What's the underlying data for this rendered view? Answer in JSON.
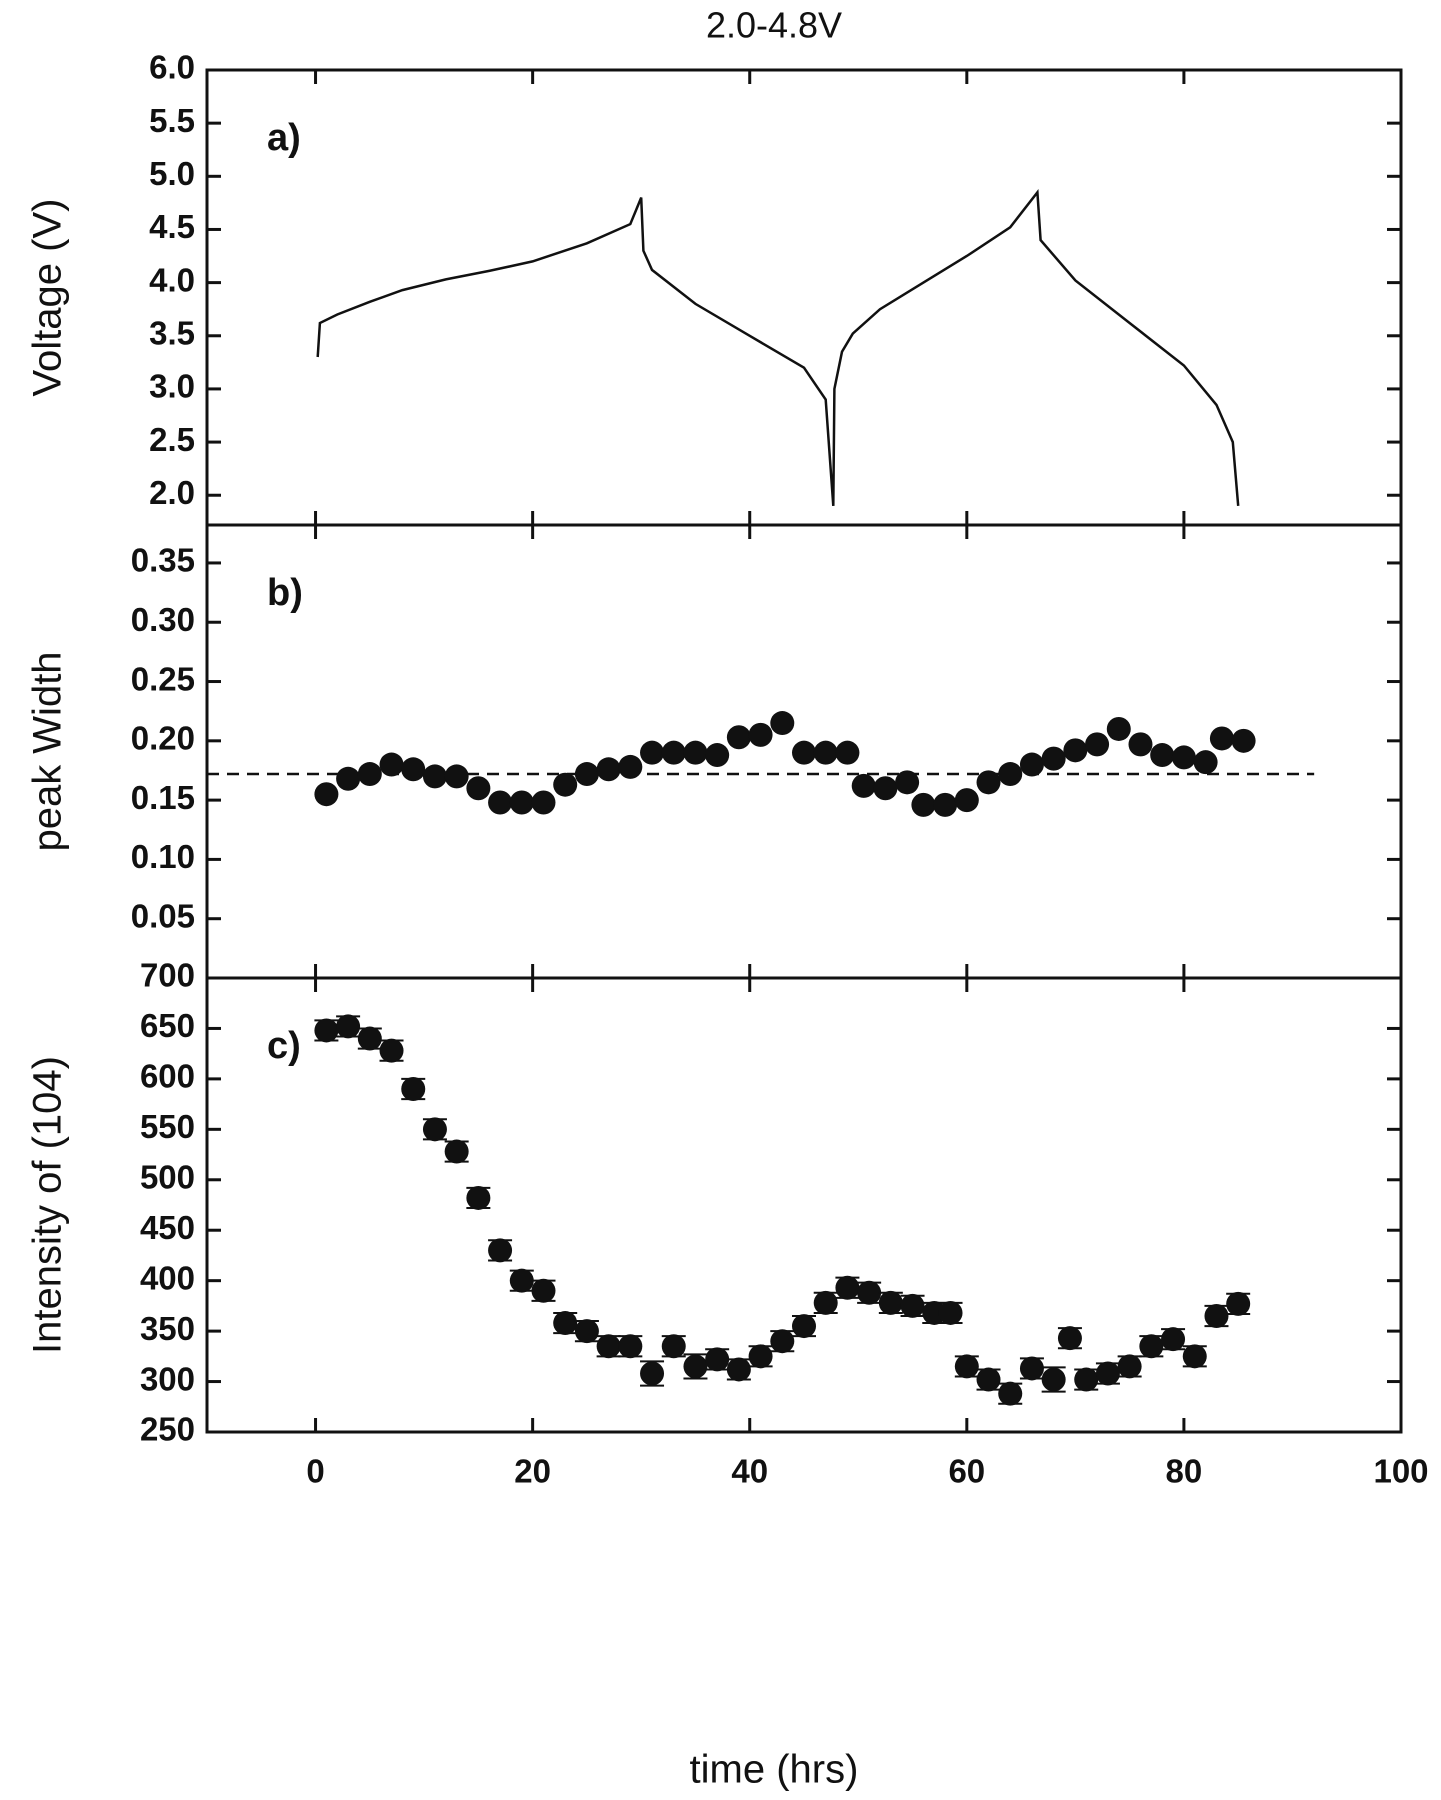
{
  "chart_data": [
    {
      "type": "line",
      "title": "2.0-4.8V",
      "panel_label": "a)",
      "ylabel": "Voltage (V)",
      "color": "#111111",
      "xlim": [
        -10,
        100
      ],
      "ylim": [
        1.72,
        6.0
      ],
      "yticks": [
        {
          "value": 2.0,
          "label": "2.0"
        },
        {
          "value": 2.5,
          "label": "2.5"
        },
        {
          "value": 3.0,
          "label": "3.0"
        },
        {
          "value": 3.5,
          "label": "3.5"
        },
        {
          "value": 4.0,
          "label": "4.0"
        },
        {
          "value": 4.5,
          "label": "4.5"
        },
        {
          "value": 5.0,
          "label": "5.0"
        },
        {
          "value": 5.5,
          "label": "5.5"
        },
        {
          "value": 6.0,
          "label": "6.0"
        }
      ],
      "x": [
        0.2,
        0.4,
        2,
        5,
        8,
        12,
        16,
        20,
        25,
        29,
        30,
        30.2,
        31,
        35,
        40,
        45,
        47,
        47.7,
        47.8,
        48.5,
        49.5,
        52,
        56,
        60,
        64,
        66.5,
        66.8,
        70,
        75,
        80,
        83,
        84.5,
        85
      ],
      "values": [
        3.3,
        3.62,
        3.7,
        3.82,
        3.93,
        4.03,
        4.11,
        4.2,
        4.37,
        4.55,
        4.8,
        4.3,
        4.12,
        3.8,
        3.5,
        3.2,
        2.9,
        1.9,
        3.0,
        3.35,
        3.52,
        3.75,
        4.0,
        4.25,
        4.52,
        4.85,
        4.4,
        4.02,
        3.62,
        3.22,
        2.85,
        2.5,
        1.9
      ]
    },
    {
      "type": "scatter",
      "panel_label": "b)",
      "ylabel": "peak Width",
      "color": "#111111",
      "xlim": [
        -10,
        100
      ],
      "ylim": [
        0,
        0.382
      ],
      "yticks": [
        {
          "value": 0.05,
          "label": "0.05"
        },
        {
          "value": 0.1,
          "label": "0.10"
        },
        {
          "value": 0.15,
          "label": "0.15"
        },
        {
          "value": 0.2,
          "label": "0.20"
        },
        {
          "value": 0.25,
          "label": "0.25"
        },
        {
          "value": 0.3,
          "label": "0.30"
        },
        {
          "value": 0.35,
          "label": "0.35"
        }
      ],
      "reference_line": {
        "y": 0.172,
        "x": [
          -10,
          92
        ]
      },
      "x": [
        1,
        3,
        5,
        7,
        9,
        11,
        13,
        15,
        17,
        19,
        21,
        23,
        25,
        27,
        29,
        31,
        33,
        35,
        37,
        39,
        41,
        43,
        45,
        47,
        49,
        50.5,
        52.5,
        54.5,
        56,
        58,
        60,
        62,
        64,
        66,
        68,
        70,
        72,
        74,
        76,
        78,
        80,
        82,
        83.5,
        85.5
      ],
      "values": [
        0.155,
        0.168,
        0.172,
        0.18,
        0.176,
        0.17,
        0.17,
        0.16,
        0.148,
        0.148,
        0.148,
        0.163,
        0.172,
        0.176,
        0.178,
        0.19,
        0.19,
        0.19,
        0.188,
        0.203,
        0.205,
        0.215,
        0.19,
        0.19,
        0.19,
        0.162,
        0.16,
        0.165,
        0.146,
        0.146,
        0.15,
        0.165,
        0.172,
        0.18,
        0.185,
        0.192,
        0.197,
        0.21,
        0.197,
        0.188,
        0.186,
        0.182,
        0.202,
        0.2
      ]
    },
    {
      "type": "scatter",
      "panel_label": "c)",
      "ylabel": "Intensity of (104)",
      "xlabel": "time (hrs)",
      "color": "#111111",
      "xlim": [
        -10,
        100
      ],
      "ylim": [
        250,
        700
      ],
      "yticks": [
        250,
        300,
        350,
        400,
        450,
        500,
        550,
        600,
        650,
        700
      ],
      "xticks": [
        0,
        20,
        40,
        60,
        80,
        100
      ],
      "x": [
        1,
        3,
        5,
        7,
        9,
        11,
        13,
        15,
        17,
        19,
        21,
        23,
        25,
        27,
        29,
        31,
        33,
        35,
        37,
        39,
        41,
        43,
        45,
        47,
        49,
        51,
        53,
        55,
        57,
        58.5,
        60,
        62,
        64,
        66,
        68,
        69.5,
        71,
        73,
        75,
        77,
        79,
        81,
        83,
        85
      ],
      "values": [
        648,
        652,
        640,
        628,
        590,
        550,
        528,
        482,
        430,
        400,
        390,
        358,
        350,
        335,
        335,
        308,
        335,
        315,
        322,
        312,
        325,
        340,
        355,
        378,
        393,
        388,
        378,
        375,
        368,
        368,
        315,
        302,
        288,
        313,
        302,
        343,
        302,
        308,
        315,
        335,
        342,
        325,
        365,
        377
      ],
      "errors": [
        10,
        10,
        10,
        10,
        10,
        10,
        10,
        10,
        10,
        10,
        10,
        10,
        10,
        10,
        10,
        12,
        10,
        12,
        10,
        10,
        10,
        10,
        10,
        10,
        10,
        10,
        10,
        10,
        10,
        10,
        10,
        10,
        10,
        10,
        12,
        10,
        10,
        10,
        10,
        10,
        10,
        10,
        10,
        10
      ]
    }
  ]
}
